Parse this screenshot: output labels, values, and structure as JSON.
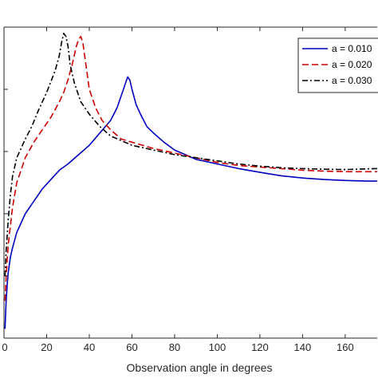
{
  "chart_data": {
    "type": "line",
    "title": "",
    "xlabel": "Observation angle in degrees",
    "ylabel": "",
    "xlim": [
      0,
      175
    ],
    "ylim": [
      0,
      1.0
    ],
    "grid": false,
    "legend_position": "top-right",
    "x_ticks": [
      0,
      20,
      40,
      60,
      80,
      100,
      120,
      140,
      160
    ],
    "x_tick_labels": [
      "0",
      "20",
      "40",
      "60",
      "80",
      "100",
      "120",
      "140",
      "160"
    ],
    "series": [
      {
        "name": "a = 0.010",
        "color": "#0000c0",
        "dash": "solid",
        "x": [
          0.5,
          1,
          1.5,
          2,
          3,
          4,
          6,
          8,
          10,
          14,
          18,
          22,
          26,
          30,
          35,
          40,
          45,
          50,
          53,
          55,
          56,
          57,
          58,
          59,
          60,
          62,
          64,
          67,
          70,
          75,
          80,
          85,
          90,
          100,
          110,
          120,
          130,
          140,
          150,
          160,
          170,
          175
        ],
        "y": [
          0.03,
          0.12,
          0.17,
          0.21,
          0.26,
          0.29,
          0.34,
          0.37,
          0.4,
          0.44,
          0.48,
          0.51,
          0.54,
          0.56,
          0.59,
          0.62,
          0.66,
          0.7,
          0.74,
          0.78,
          0.8,
          0.82,
          0.84,
          0.83,
          0.8,
          0.75,
          0.72,
          0.68,
          0.66,
          0.63,
          0.605,
          0.59,
          0.575,
          0.56,
          0.545,
          0.533,
          0.522,
          0.515,
          0.51,
          0.507,
          0.505,
          0.505
        ]
      },
      {
        "name": "a = 0.020",
        "color": "#d00000",
        "dash": "dashed",
        "x": [
          0.5,
          1,
          2,
          3,
          4,
          6,
          8,
          10,
          14,
          18,
          22,
          26,
          28,
          30,
          32,
          34,
          35,
          36,
          37,
          38,
          40,
          43,
          46,
          50,
          55,
          60,
          70,
          80,
          90,
          100,
          110,
          120,
          130,
          140,
          150,
          160,
          175
        ],
        "y": [
          0.12,
          0.2,
          0.3,
          0.36,
          0.42,
          0.5,
          0.54,
          0.58,
          0.63,
          0.67,
          0.71,
          0.76,
          0.79,
          0.83,
          0.88,
          0.94,
          0.96,
          0.97,
          0.95,
          0.9,
          0.8,
          0.74,
          0.7,
          0.67,
          0.64,
          0.63,
          0.61,
          0.595,
          0.58,
          0.565,
          0.555,
          0.55,
          0.545,
          0.54,
          0.537,
          0.535,
          0.535
        ]
      },
      {
        "name": "a = 0.030",
        "color": "#000000",
        "dash": "dashdot",
        "x": [
          0.5,
          1,
          2,
          3,
          4,
          6,
          8,
          10,
          13,
          16,
          20,
          24,
          26,
          27,
          28,
          29,
          30,
          31,
          33,
          36,
          40,
          45,
          50,
          60,
          70,
          80,
          90,
          100,
          110,
          120,
          130,
          140,
          150,
          160,
          175
        ],
        "y": [
          0.2,
          0.28,
          0.38,
          0.46,
          0.52,
          0.58,
          0.61,
          0.64,
          0.68,
          0.73,
          0.79,
          0.86,
          0.91,
          0.95,
          0.98,
          0.97,
          0.94,
          0.88,
          0.82,
          0.76,
          0.72,
          0.68,
          0.65,
          0.62,
          0.605,
          0.59,
          0.58,
          0.57,
          0.56,
          0.553,
          0.548,
          0.545,
          0.543,
          0.542,
          0.545
        ]
      }
    ]
  }
}
